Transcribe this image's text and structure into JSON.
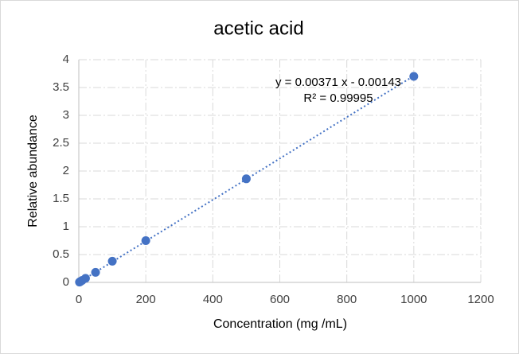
{
  "chart_data": {
    "type": "scatter",
    "title": "acetic acid",
    "x_label": "Concentration (mg  /mL)",
    "y_label": "Relative abundance",
    "x": [
      2,
      5,
      10,
      20,
      50,
      100,
      200,
      500,
      1000
    ],
    "values": [
      0.005,
      0.017,
      0.036,
      0.073,
      0.18,
      0.38,
      0.75,
      1.86,
      3.7
    ],
    "color": "#4472c4",
    "xlim": [
      0,
      1200
    ],
    "xticks": [
      0,
      200,
      400,
      600,
      800,
      1000,
      1200
    ],
    "ylim": [
      0,
      4
    ],
    "yticks": [
      0,
      0.5,
      1,
      1.5,
      2,
      2.5,
      3,
      3.5,
      4
    ],
    "grid": true,
    "trendline": {
      "slope": 0.00371,
      "intercept": -0.00143
    },
    "annotations": [
      "y = 0.00371 x - 0.00143",
      "R² = 0.99995"
    ]
  }
}
